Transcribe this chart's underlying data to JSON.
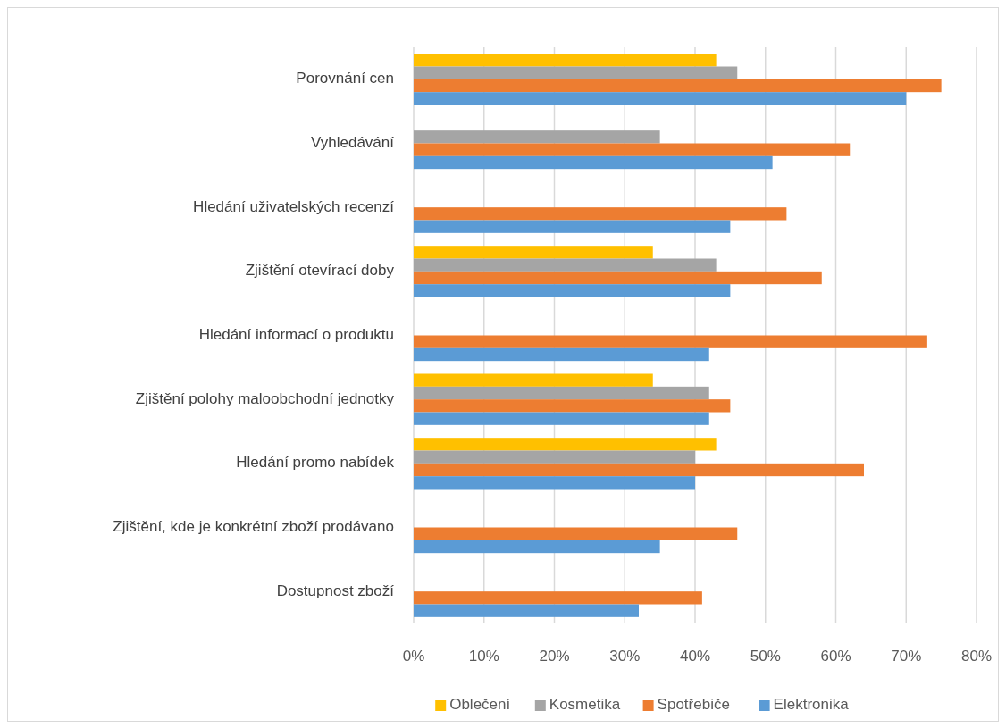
{
  "chart_data": {
    "type": "bar",
    "orientation": "horizontal",
    "categories": [
      "Porovnání cen",
      "Vyhledávání",
      "Hledání uživatelských recenzí",
      "Zjištění otevírací doby",
      "Hledání informací o produktu",
      "Zjištění polohy maloobchodní jednotky",
      "Hledání promo nabídek",
      "Zjištění, kde je konkrétní zboží prodávano",
      "Dostupnost zboží"
    ],
    "series": [
      {
        "name": "Oblečení",
        "color": "#ffc000",
        "values": [
          43,
          null,
          null,
          34,
          null,
          34,
          43,
          null,
          null
        ]
      },
      {
        "name": "Kosmetika",
        "color": "#a5a5a5",
        "values": [
          46,
          35,
          null,
          43,
          null,
          42,
          40,
          null,
          null
        ]
      },
      {
        "name": "Spotřebiče",
        "color": "#ed7d31",
        "values": [
          75,
          62,
          53,
          58,
          73,
          45,
          64,
          46,
          41
        ]
      },
      {
        "name": "Elektronika",
        "color": "#5b9bd5",
        "values": [
          70,
          51,
          45,
          45,
          42,
          42,
          40,
          35,
          32
        ]
      }
    ],
    "xlim": [
      0,
      80
    ],
    "xticks": [
      {
        "value": 0,
        "label": "0%"
      },
      {
        "value": 10,
        "label": "10%"
      },
      {
        "value": 20,
        "label": "20%"
      },
      {
        "value": 30,
        "label": "30%"
      },
      {
        "value": 40,
        "label": "40%"
      },
      {
        "value": 50,
        "label": "50%"
      },
      {
        "value": 60,
        "label": "60%"
      },
      {
        "value": 70,
        "label": "70%"
      },
      {
        "value": 80,
        "label": "80%"
      }
    ],
    "grid": "x",
    "legend": "bottom"
  }
}
